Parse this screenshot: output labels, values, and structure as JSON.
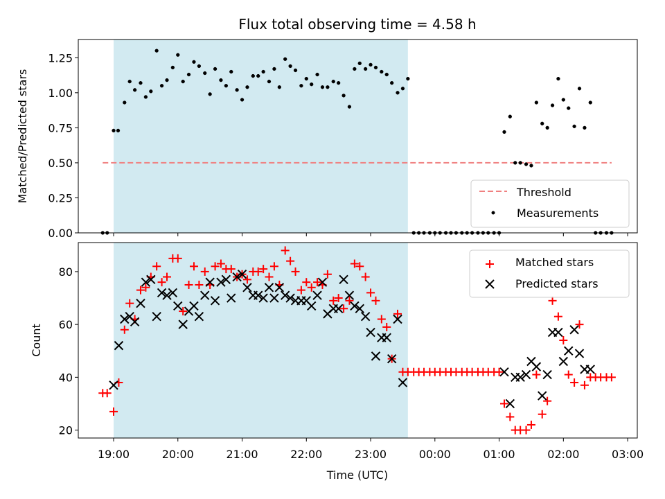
{
  "chart_data": [
    {
      "type": "scatter",
      "title": "Flux total observing time = 4.58 h",
      "xlabel": "",
      "ylabel": "Matched/Predicted stars",
      "ylim": [
        0,
        1.38
      ],
      "yticks": [
        "0.00",
        "0.25",
        "0.50",
        "0.75",
        "1.00",
        "1.25"
      ],
      "ytick_values": [
        0,
        0.25,
        0.5,
        0.75,
        1.0,
        1.25
      ],
      "shaded_region_hours": [
        19.0,
        23.58
      ],
      "threshold": {
        "name": "Threshold",
        "value": 0.5,
        "x_range_hours": [
          18.83,
          26.75
        ],
        "color": "#f08080"
      },
      "legend": [
        "Threshold",
        "Measurements"
      ],
      "series": [
        {
          "name": "Measurements",
          "color": "#000000",
          "x_hours": [
            18.83,
            18.9,
            19.0,
            19.07,
            19.17,
            19.25,
            19.33,
            19.42,
            19.5,
            19.58,
            19.67,
            19.75,
            19.83,
            19.92,
            20.0,
            20.08,
            20.17,
            20.25,
            20.33,
            20.42,
            20.5,
            20.58,
            20.67,
            20.75,
            20.83,
            20.92,
            21.0,
            21.08,
            21.17,
            21.25,
            21.33,
            21.42,
            21.5,
            21.58,
            21.67,
            21.75,
            21.83,
            21.92,
            22.0,
            22.08,
            22.17,
            22.25,
            22.33,
            22.42,
            22.5,
            22.58,
            22.67,
            22.75,
            22.83,
            22.92,
            23.0,
            23.08,
            23.17,
            23.25,
            23.33,
            23.42,
            23.5,
            23.58,
            23.67,
            23.75,
            23.83,
            23.92,
            24.0,
            24.08,
            24.17,
            24.25,
            24.33,
            24.42,
            24.5,
            24.58,
            24.67,
            24.75,
            24.83,
            24.92,
            25.0,
            25.08,
            25.17,
            25.25,
            25.33,
            25.42,
            25.5,
            25.58,
            25.67,
            25.75,
            25.83,
            25.92,
            26.0,
            26.08,
            26.17,
            26.25,
            26.33,
            26.42,
            26.5,
            26.58,
            26.67,
            26.75
          ],
          "y": [
            0.0,
            0.0,
            0.73,
            0.73,
            0.93,
            1.08,
            1.02,
            1.07,
            0.97,
            1.01,
            1.3,
            1.05,
            1.09,
            1.18,
            1.27,
            1.08,
            1.13,
            1.22,
            1.19,
            1.14,
            0.99,
            1.17,
            1.09,
            1.05,
            1.15,
            1.02,
            0.95,
            1.04,
            1.12,
            1.12,
            1.15,
            1.08,
            1.17,
            1.04,
            1.24,
            1.19,
            1.16,
            1.05,
            1.1,
            1.06,
            1.13,
            1.04,
            1.04,
            1.08,
            1.07,
            0.98,
            0.9,
            1.17,
            1.21,
            1.17,
            1.2,
            1.18,
            1.15,
            1.13,
            1.07,
            1.0,
            1.03,
            1.1,
            0.0,
            0.0,
            0.0,
            0.0,
            0.0,
            0.0,
            0.0,
            0.0,
            0.0,
            0.0,
            0.0,
            0.0,
            0.0,
            0.0,
            0.0,
            0.0,
            0.0,
            0.72,
            0.83,
            0.5,
            0.5,
            0.49,
            0.48,
            0.93,
            0.78,
            0.75,
            0.91,
            1.1,
            0.95,
            0.89,
            0.76,
            1.03,
            0.75,
            0.93,
            0.0,
            0.0,
            0.0,
            0.0
          ]
        }
      ]
    },
    {
      "type": "scatter",
      "title": "",
      "xlabel": "Time (UTC)",
      "ylabel": "Count",
      "ylim": [
        17,
        91
      ],
      "yticks": [
        "20",
        "40",
        "60",
        "80"
      ],
      "ytick_values": [
        20,
        40,
        60,
        80
      ],
      "xticks": [
        "19:00",
        "20:00",
        "21:00",
        "22:00",
        "23:00",
        "00:00",
        "01:00",
        "02:00",
        "03:00"
      ],
      "xtick_hours": [
        19,
        20,
        21,
        22,
        23,
        24,
        25,
        26,
        27
      ],
      "shaded_region_hours": [
        19.0,
        23.58
      ],
      "legend": [
        "Matched stars",
        "Predicted stars"
      ],
      "series": [
        {
          "name": "Matched stars",
          "marker": "plus",
          "color": "#ff0000",
          "x_hours": [
            18.83,
            18.9,
            19.0,
            19.08,
            19.17,
            19.25,
            19.33,
            19.42,
            19.5,
            19.58,
            19.67,
            19.75,
            19.83,
            19.92,
            20.0,
            20.08,
            20.17,
            20.25,
            20.33,
            20.42,
            20.5,
            20.58,
            20.67,
            20.75,
            20.83,
            20.92,
            21.0,
            21.08,
            21.17,
            21.25,
            21.33,
            21.42,
            21.5,
            21.58,
            21.67,
            21.75,
            21.83,
            21.92,
            22.0,
            22.08,
            22.17,
            22.25,
            22.33,
            22.42,
            22.5,
            22.58,
            22.67,
            22.75,
            22.83,
            22.92,
            23.0,
            23.08,
            23.17,
            23.25,
            23.33,
            23.42,
            23.5,
            23.58,
            23.67,
            23.75,
            23.83,
            23.92,
            24.0,
            24.08,
            24.17,
            24.25,
            24.33,
            24.42,
            24.5,
            24.58,
            24.67,
            24.75,
            24.83,
            24.92,
            25.0,
            25.08,
            25.17,
            25.25,
            25.33,
            25.42,
            25.5,
            25.58,
            25.67,
            25.75,
            25.83,
            25.92,
            26.0,
            26.08,
            26.17,
            26.25,
            26.33,
            26.42,
            26.5,
            26.58,
            26.67,
            26.75
          ],
          "y": [
            34,
            34,
            27,
            38,
            58,
            68,
            62,
            73,
            74,
            78,
            82,
            76,
            78,
            85,
            85,
            65,
            75,
            82,
            75,
            80,
            75,
            82,
            83,
            81,
            81,
            78,
            79,
            77,
            80,
            80,
            81,
            78,
            82,
            75,
            88,
            84,
            80,
            73,
            76,
            74,
            76,
            75,
            79,
            69,
            70,
            66,
            69,
            83,
            82,
            78,
            72,
            69,
            62,
            59,
            47,
            64,
            42,
            42,
            42,
            42,
            42,
            42,
            42,
            42,
            42,
            42,
            42,
            42,
            42,
            42,
            42,
            42,
            42,
            42,
            42,
            30,
            25,
            20,
            20,
            20,
            22,
            41,
            26,
            31,
            69,
            63,
            54,
            41,
            38,
            60,
            37,
            40,
            40,
            40,
            40,
            40
          ],
          "x_hours_note": ""
        },
        {
          "name": "Predicted stars",
          "marker": "x",
          "color": "#000000",
          "x_hours": [
            19.0,
            19.08,
            19.17,
            19.25,
            19.33,
            19.42,
            19.5,
            19.58,
            19.67,
            19.75,
            19.83,
            19.92,
            20.0,
            20.08,
            20.17,
            20.25,
            20.33,
            20.42,
            20.5,
            20.58,
            20.67,
            20.75,
            20.83,
            20.92,
            21.0,
            21.08,
            21.17,
            21.25,
            21.33,
            21.42,
            21.5,
            21.58,
            21.67,
            21.75,
            21.83,
            21.92,
            22.0,
            22.08,
            22.17,
            22.25,
            22.33,
            22.42,
            22.5,
            22.58,
            22.67,
            22.75,
            22.83,
            22.92,
            23.0,
            23.08,
            23.17,
            23.25,
            23.33,
            23.42,
            23.5,
            25.08,
            25.17,
            25.25,
            25.33,
            25.42,
            25.5,
            25.58,
            25.67,
            25.75,
            25.83,
            25.92,
            26.0,
            26.08,
            26.17,
            26.25,
            26.33,
            26.42
          ],
          "y": [
            37,
            52,
            62,
            63,
            61,
            68,
            76,
            77,
            63,
            72,
            71,
            72,
            67,
            60,
            65,
            67,
            63,
            71,
            76,
            69,
            76,
            77,
            70,
            78,
            79,
            74,
            71,
            71,
            70,
            74,
            70,
            74,
            71,
            70,
            69,
            69,
            69,
            67,
            71,
            76,
            64,
            66,
            66,
            77,
            71,
            67,
            66,
            63,
            57,
            48,
            55,
            55,
            47,
            62,
            38,
            42,
            30,
            40,
            40,
            41,
            46,
            44,
            33,
            41,
            57,
            57,
            46,
            50,
            58,
            49,
            43,
            43
          ]
        }
      ]
    }
  ]
}
